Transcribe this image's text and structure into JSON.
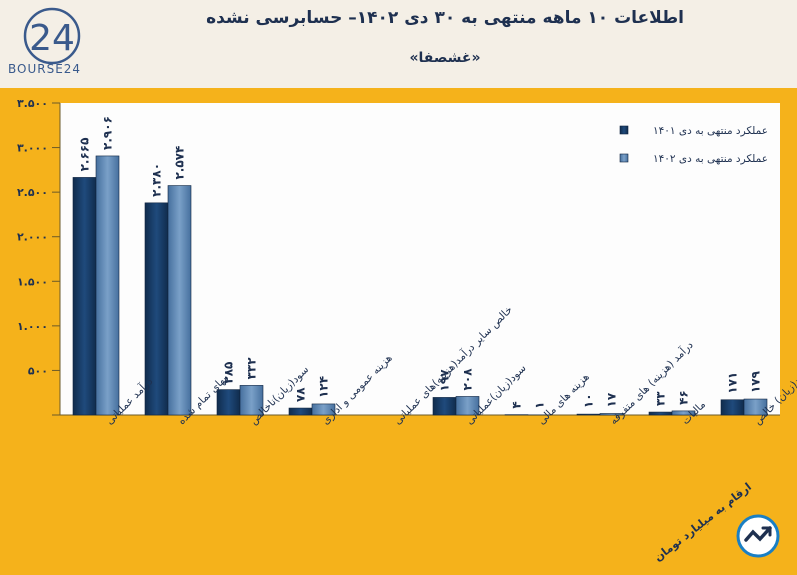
{
  "header": {
    "title": "اطلاعات ۱۰ ماهه منتهی به ۳۰ دی ۱۴۰۲– حسابرسی نشده",
    "subtitle": "«غشصفا»",
    "logo_text": "BOURSE24",
    "logo_mark": "24"
  },
  "footer": {
    "unit_note": "ارقام به میلیارد تومان"
  },
  "colors": {
    "series_1401": "#173a63",
    "series_1402": "#5b82ad",
    "panel": "#f5b21b",
    "plot_bg": "#fdfdfd",
    "title": "#1e3050"
  },
  "chart_data": {
    "type": "bar",
    "ylim": [
      0,
      3500
    ],
    "yticks": [
      0,
      500,
      1000,
      1500,
      2000,
      2500,
      3000,
      3500
    ],
    "ytick_labels": [
      "",
      "۵۰۰",
      "۱.۰۰۰",
      "۱.۵۰۰",
      "۲.۰۰۰",
      "۲.۵۰۰",
      "۳.۰۰۰",
      "۳.۵۰۰"
    ],
    "categories": [
      "درآمد عملیاتی",
      "بهای تمام شده",
      "سود(زیان)ناخالص",
      "هزینه عمومی و اداری",
      "خالص سایر درآمد(هزینه)های عملیاتی",
      "سود(زیان)عملیاتی",
      "هزینه های مالی",
      "درآمد (هزینه) های متفرقه",
      "مالیات",
      "سود(زیان) خالص"
    ],
    "series": [
      {
        "name": "عملکرد منتهی به دی ۱۴۰۱",
        "values": [
          2665,
          2380,
          285,
          78,
          0,
          197,
          4,
          10,
          33,
          171
        ],
        "labels": [
          "۲.۶۶۵",
          "۲.۳۸۰",
          "۲۸۵",
          "۷۸",
          "",
          "۱۹۷",
          "۴",
          "۱۰",
          "۳۳",
          "۱۷۱"
        ]
      },
      {
        "name": "عملکرد منتهی به دی ۱۴۰۲",
        "values": [
          2906,
          2574,
          332,
          124,
          0,
          208,
          1,
          17,
          46,
          179
        ],
        "labels": [
          "۲.۹۰۶",
          "۲.۵۷۴",
          "۳۳۲",
          "۱۲۴",
          "",
          "۲۰۸",
          "۱",
          "۱۷",
          "۴۶",
          "۱۷۹"
        ]
      }
    ],
    "legend_position": "top-right",
    "grid": false
  }
}
